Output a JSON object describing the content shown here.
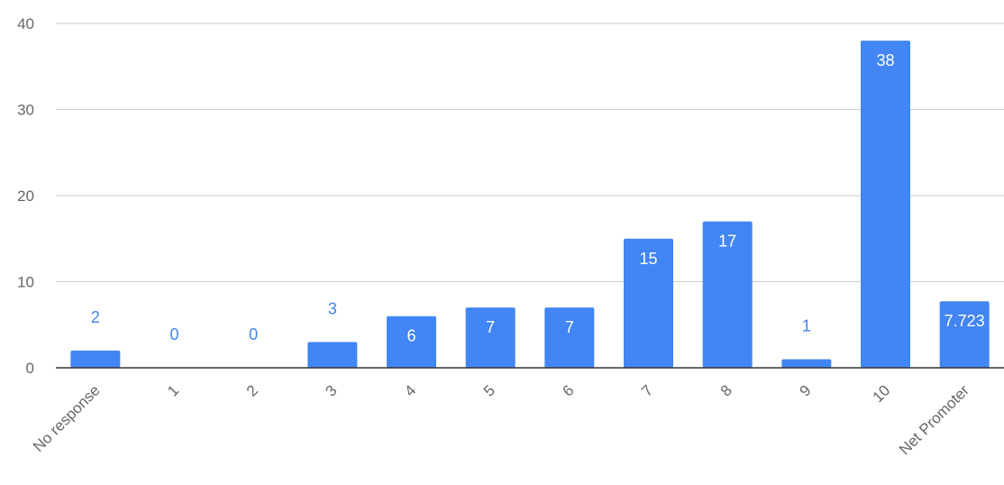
{
  "chart_data": {
    "type": "bar",
    "title": "",
    "xlabel": "",
    "ylabel": "",
    "categories": [
      "No response",
      "1",
      "2",
      "3",
      "4",
      "5",
      "6",
      "7",
      "8",
      "9",
      "10",
      "Net Promoter"
    ],
    "values": [
      2,
      0,
      0,
      3,
      6,
      7,
      7,
      15,
      17,
      1,
      38,
      7.723
    ],
    "data_labels": [
      "2",
      "0",
      "0",
      "3",
      "6",
      "7",
      "7",
      "15",
      "17",
      "1",
      "38",
      "7.723"
    ],
    "ylim": [
      0,
      40
    ],
    "yticks": [
      "0",
      "10",
      "20",
      "30",
      "40"
    ],
    "grid": true,
    "legend": "none",
    "colors": {
      "bar": "#4285f4",
      "label_inside": "#ffffff",
      "label_outside": "#4285f4"
    }
  }
}
